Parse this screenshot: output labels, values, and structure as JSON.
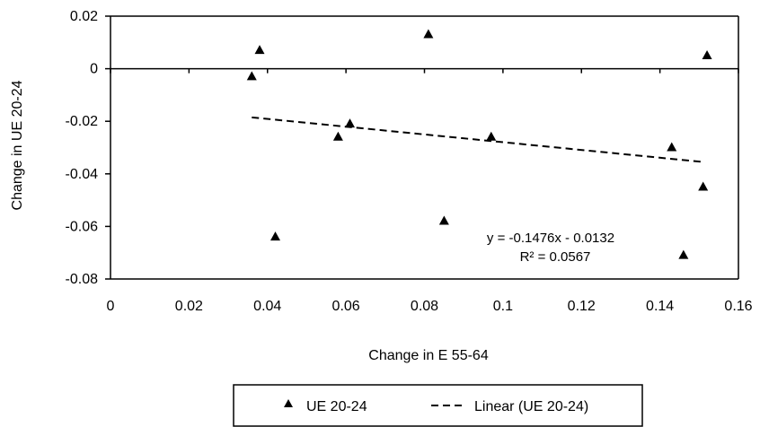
{
  "chart_data": {
    "type": "scatter",
    "xlabel": "Change in E 55-64",
    "ylabel": "Change in UE 20-24",
    "xlim": [
      0,
      0.16
    ],
    "ylim": [
      -0.08,
      0.02
    ],
    "x_ticks": [
      "0",
      "0.02",
      "0.04",
      "0.06",
      "0.08",
      "0.1",
      "0.12",
      "0.14",
      "0.16"
    ],
    "y_ticks": [
      "0.02",
      "0",
      "-0.02",
      "-0.04",
      "-0.06",
      "-0.08"
    ],
    "series": [
      {
        "name": "UE 20-24",
        "marker": "triangle",
        "color": "#000000",
        "points": [
          {
            "x": 0.036,
            "y": -0.003
          },
          {
            "x": 0.038,
            "y": 0.007
          },
          {
            "x": 0.042,
            "y": -0.064
          },
          {
            "x": 0.058,
            "y": -0.026
          },
          {
            "x": 0.061,
            "y": -0.021
          },
          {
            "x": 0.081,
            "y": 0.013
          },
          {
            "x": 0.085,
            "y": -0.058
          },
          {
            "x": 0.097,
            "y": -0.026
          },
          {
            "x": 0.143,
            "y": -0.03
          },
          {
            "x": 0.146,
            "y": -0.071
          },
          {
            "x": 0.151,
            "y": -0.045
          },
          {
            "x": 0.152,
            "y": 0.005
          }
        ]
      }
    ],
    "trendline": {
      "name": "Linear (UE 20-24)",
      "style": "dashed",
      "slope": -0.1476,
      "intercept": -0.0132,
      "x_range": [
        0.036,
        0.151
      ]
    },
    "annotations": [
      "y = -0.1476x - 0.0132",
      "R² = 0.0567"
    ],
    "legend": {
      "position": "bottom",
      "entries": [
        "UE 20-24",
        "Linear (UE 20-24)"
      ]
    },
    "grid": false
  }
}
